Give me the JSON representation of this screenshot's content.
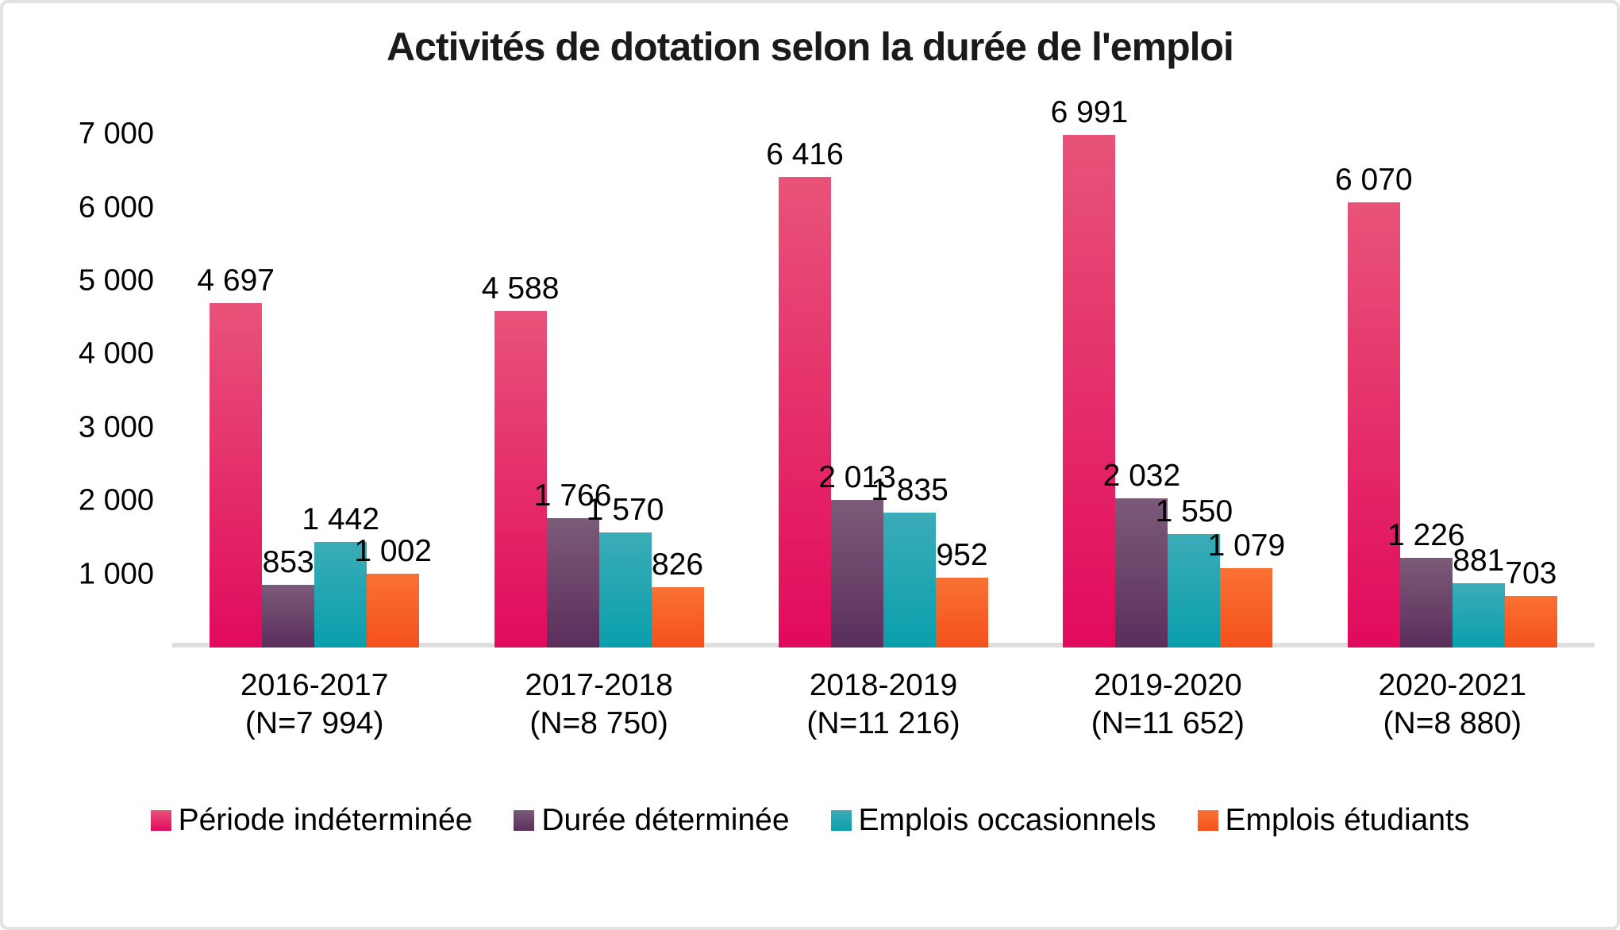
{
  "chart_data": {
    "type": "bar",
    "title": "Activités de dotation selon la durée de l'emploi",
    "categories": [
      {
        "label": "2016-2017",
        "sublabel": "(N=7 994)"
      },
      {
        "label": "2017-2018",
        "sublabel": "(N=8 750)"
      },
      {
        "label": "2018-2019",
        "sublabel": "(N=11 216)"
      },
      {
        "label": "2019-2020",
        "sublabel": "(N=11 652)"
      },
      {
        "label": "2020-2021",
        "sublabel": "(N=8 880)"
      }
    ],
    "series": [
      {
        "name": "Période indéterminée",
        "color_top": "#e85379",
        "color_bottom": "#e10a5c",
        "values": [
          4697,
          4588,
          6416,
          6991,
          6070
        ],
        "labels": [
          "4 697",
          "4 588",
          "6 416",
          "6 991",
          "6 070"
        ]
      },
      {
        "name": "Durée déterminée",
        "color_top": "#7b5b79",
        "color_bottom": "#5b2e5c",
        "values": [
          853,
          1766,
          2013,
          2032,
          1226
        ],
        "labels": [
          "853",
          "1 766",
          "2 013",
          "2 032",
          "1 226"
        ]
      },
      {
        "name": "Emplois occasionnels",
        "color_top": "#3bacb8",
        "color_bottom": "#0a9fac",
        "values": [
          1442,
          1570,
          1835,
          1550,
          881
        ],
        "labels": [
          "1 442",
          "1 570",
          "1 835",
          "1 550",
          "881"
        ]
      },
      {
        "name": "Emplois étudiants",
        "color_top": "#fa7134",
        "color_bottom": "#f4511b",
        "values": [
          1002,
          826,
          952,
          1079,
          703
        ],
        "labels": [
          "1 002",
          "826",
          "952",
          "1 079",
          "703"
        ]
      }
    ],
    "ylim": [
      0,
      7000
    ],
    "yticks": [
      1000,
      2000,
      3000,
      4000,
      5000,
      6000,
      7000
    ],
    "ytick_labels": [
      "1 000",
      "2 000",
      "3 000",
      "4 000",
      "5 000",
      "6 000",
      "7 000"
    ],
    "grid": false,
    "legend_position": "bottom",
    "background_color": "#ffffff",
    "axis_line_color": "#dedede"
  }
}
